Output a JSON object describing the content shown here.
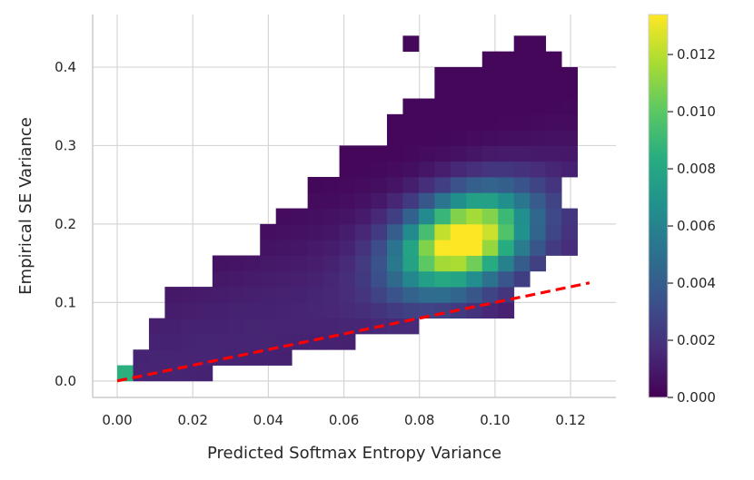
{
  "chart_data": {
    "type": "heatmap",
    "title": "",
    "xlabel": "Predicted Softmax Entropy Variance",
    "ylabel": "Empirical SE Variance",
    "xlim": [
      -0.0065,
      0.132
    ],
    "ylim": [
      -0.021,
      0.467
    ],
    "xticks": [
      "0.00",
      "0.02",
      "0.04",
      "0.06",
      "0.08",
      "0.10",
      "0.12"
    ],
    "xtick_values": [
      0,
      0.02,
      0.04,
      0.06,
      0.08,
      0.1,
      0.12
    ],
    "yticks": [
      "0.0",
      "0.1",
      "0.2",
      "0.3",
      "0.4"
    ],
    "ytick_values": [
      0,
      0.1,
      0.2,
      0.3,
      0.4
    ],
    "grid": true,
    "colormap": "viridis",
    "colorbar": {
      "min": 0,
      "max": 0.0134,
      "ticks": [
        "0.000",
        "0.002",
        "0.004",
        "0.006",
        "0.008",
        "0.010",
        "0.012"
      ],
      "tick_values": [
        0,
        0.002,
        0.004,
        0.006,
        0.008,
        0.01,
        0.012
      ]
    },
    "heatmap": {
      "x_min": 0,
      "x_max": 0.126,
      "nx": 30,
      "y_min": 0,
      "y_max": 0.44,
      "ny": 22,
      "peak_density": 0.0134,
      "peak_center": [
        0.0915,
        0.18
      ],
      "peak_spread": [
        0.011,
        0.04
      ],
      "peak_tilt": 0.35,
      "origin_cell_density": 0.0085,
      "isolated_cell": [
        0.077,
        0.43
      ],
      "row_extent": [
        {
          "y": 0.01,
          "x": [
            0.001,
            0.025
          ]
        },
        {
          "y": 0.03,
          "x": [
            0.004,
            0.046
          ]
        },
        {
          "y": 0.05,
          "x": [
            0.008,
            0.065
          ]
        },
        {
          "y": 0.07,
          "x": [
            0.01,
            0.08
          ]
        },
        {
          "y": 0.09,
          "x": [
            0.013,
            0.104
          ]
        },
        {
          "y": 0.11,
          "x": [
            0.013,
            0.106
          ]
        },
        {
          "y": 0.13,
          "x": [
            0.025,
            0.11
          ]
        },
        {
          "y": 0.15,
          "x": [
            0.025,
            0.113
          ]
        },
        {
          "y": 0.17,
          "x": [
            0.037,
            0.123
          ]
        },
        {
          "y": 0.19,
          "x": [
            0.037,
            0.123
          ]
        },
        {
          "y": 0.21,
          "x": [
            0.042,
            0.123
          ]
        },
        {
          "y": 0.23,
          "x": [
            0.05,
            0.118
          ]
        },
        {
          "y": 0.25,
          "x": [
            0.05,
            0.118
          ]
        },
        {
          "y": 0.27,
          "x": [
            0.058,
            0.12
          ]
        },
        {
          "y": 0.29,
          "x": [
            0.058,
            0.12
          ]
        },
        {
          "y": 0.31,
          "x": [
            0.071,
            0.12
          ]
        },
        {
          "y": 0.33,
          "x": [
            0.071,
            0.122
          ]
        },
        {
          "y": 0.35,
          "x": [
            0.075,
            0.122
          ]
        },
        {
          "y": 0.37,
          "x": [
            0.084,
            0.122
          ]
        },
        {
          "y": 0.39,
          "x": [
            0.084,
            0.12
          ]
        },
        {
          "y": 0.41,
          "x": [
            0.096,
            0.116
          ]
        },
        {
          "y": 0.43,
          "x": [
            0.105,
            0.112
          ]
        }
      ]
    },
    "reference_line": {
      "style": "dashed",
      "color": "#ff0000",
      "x": [
        0,
        0.125
      ],
      "y": [
        0,
        0.125
      ]
    }
  }
}
